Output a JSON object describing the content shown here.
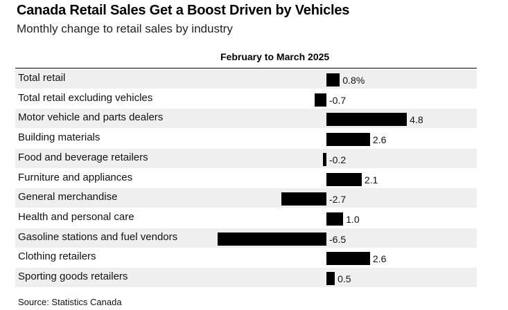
{
  "title": "Canada Retail Sales Get a Boost Driven by Vehicles",
  "subtitle": "Monthly change to retail sales by industry",
  "source": "Source: Statistics Canada",
  "chart_data": {
    "type": "bar",
    "orientation": "horizontal",
    "column_header": "February to March 2025",
    "categories": [
      "Total retail",
      "Total retail excluding vehicles",
      "Motor vehicle and parts dealers",
      "Building materials",
      "Food and beverage retailers",
      "Furniture and appliances",
      "General merchandise",
      "Health and personal care",
      "Gasoline stations and fuel vendors",
      "Clothing retailers",
      "Sporting goods retailers"
    ],
    "values": [
      0.8,
      -0.7,
      4.8,
      2.6,
      -0.2,
      2.1,
      -2.7,
      1.0,
      -6.5,
      2.6,
      0.5
    ],
    "value_labels": [
      "0.8%",
      "-0.7",
      "4.8",
      "2.6",
      "-0.2",
      "2.1",
      "-2.7",
      "1.0",
      "-6.5",
      "2.6",
      "0.5"
    ],
    "bar_color": "#000000",
    "row_shade_color": "#efefef"
  }
}
